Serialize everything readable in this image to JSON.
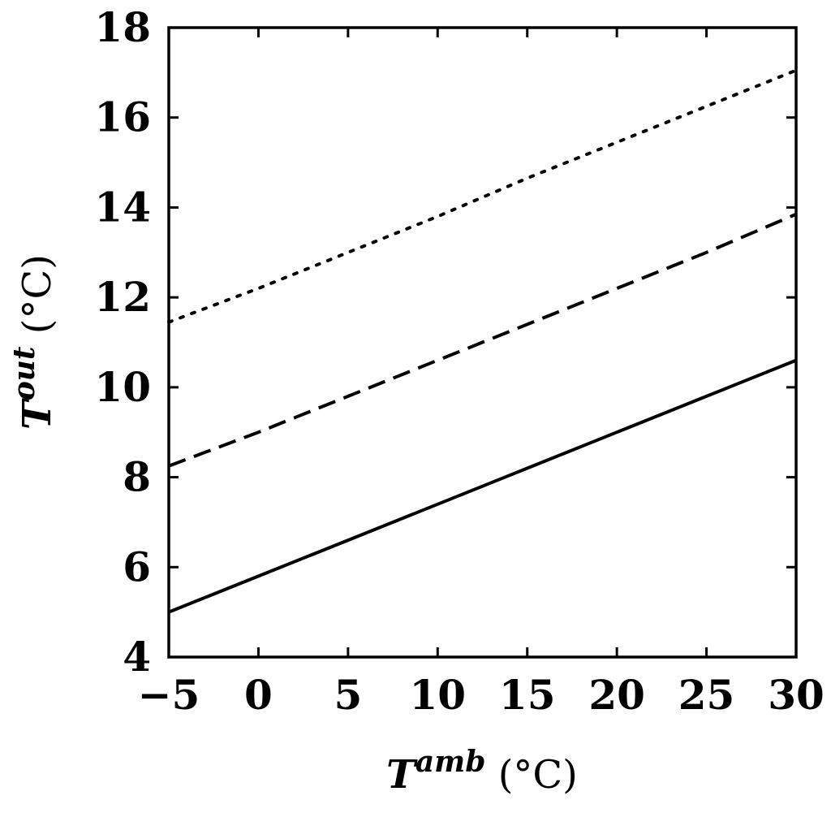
{
  "chart_data": {
    "type": "line",
    "title": "",
    "xlabel": {
      "symbol": "T",
      "superscript": "amb",
      "unit": "(°C)"
    },
    "ylabel": {
      "symbol": "T",
      "superscript": "out",
      "unit": "(°C)"
    },
    "xlim": [
      -5,
      30
    ],
    "ylim": [
      4,
      18
    ],
    "x_ticks": [
      -5,
      0,
      5,
      10,
      15,
      20,
      25,
      30
    ],
    "x_tick_labels": [
      "−5",
      "0",
      "5",
      "10",
      "15",
      "20",
      "25",
      "30"
    ],
    "y_ticks": [
      4,
      6,
      8,
      10,
      12,
      14,
      16,
      18
    ],
    "y_tick_labels": [
      "4",
      "6",
      "8",
      "10",
      "12",
      "14",
      "16",
      "18"
    ],
    "grid": false,
    "legend": "none",
    "series": [
      {
        "style": "solid",
        "color": "#000000",
        "x": [
          -5,
          0,
          5,
          10,
          15,
          20,
          25,
          30
        ],
        "y": [
          5.0,
          5.8,
          6.6,
          7.4,
          8.2,
          9.0,
          9.8,
          10.6
        ]
      },
      {
        "style": "dashed",
        "color": "#000000",
        "x": [
          -5,
          0,
          5,
          10,
          15,
          20,
          25,
          30
        ],
        "y": [
          8.25,
          9.0,
          9.8,
          10.6,
          11.4,
          12.2,
          13.0,
          13.85
        ]
      },
      {
        "style": "dotted",
        "color": "#000000",
        "x": [
          -5,
          0,
          5,
          10,
          15,
          20,
          25,
          30
        ],
        "y": [
          11.45,
          12.2,
          13.0,
          13.8,
          14.65,
          15.45,
          16.25,
          17.05
        ]
      }
    ]
  }
}
